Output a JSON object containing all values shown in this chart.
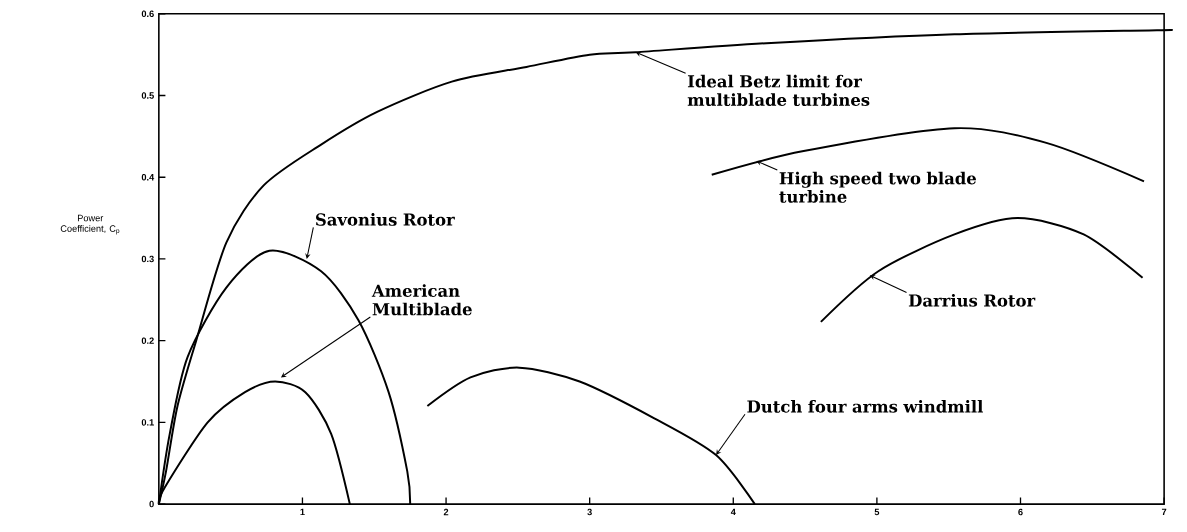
{
  "chart_data": {
    "type": "line",
    "ylabel": "Power Coefficient, C$_{p}$",
    "xlim": [
      0,
      7
    ],
    "ylim": [
      0,
      0.6
    ],
    "xticks": [
      1,
      2,
      3,
      4,
      5,
      6,
      7
    ],
    "yticks": [
      0,
      0.1,
      0.2,
      0.3,
      0.4,
      0.5,
      0.6
    ],
    "marker": "none",
    "line_style": "solid",
    "series": [
      {
        "color": "#000000",
        "x": [
          0,
          0.05,
          0.13,
          0.26,
          0.47,
          0.73,
          1.13,
          1.52,
          2.04,
          2.56,
          3.0,
          3.32,
          4.23,
          5.54,
          6.95,
          7.0
        ],
        "values": [
          0,
          0.04,
          0.12,
          0.2,
          0.32,
          0.39,
          0.44,
          0.48,
          0.517,
          0.535,
          0.55,
          0.553,
          0.564,
          0.575,
          0.58,
          0.58
        ]
      },
      {
        "color": "#000000",
        "x": [
          0,
          0.075,
          0.2,
          0.47,
          0.77,
          1.13,
          1.39,
          1.6,
          1.73,
          1.75
        ],
        "values": [
          0,
          0.085,
          0.18,
          0.265,
          0.31,
          0.285,
          0.225,
          0.137,
          0.04,
          0
        ]
      },
      {
        "color": "#000000",
        "x": [
          0,
          0.04,
          0.34,
          0.6,
          0.81,
          1.02,
          1.2,
          1.33
        ],
        "values": [
          0,
          0.02,
          0.1,
          0.137,
          0.15,
          0.137,
          0.086,
          0
        ]
      },
      {
        "color": "#000000",
        "x": [
          1.87,
          2.17,
          2.51,
          2.93,
          3.45,
          3.88,
          4.15
        ],
        "values": [
          0.12,
          0.155,
          0.167,
          0.15,
          0.105,
          0.06,
          0
        ]
      },
      {
        "color": "#000000",
        "x": [
          3.85,
          4.49,
          5.54,
          6.18,
          6.86
        ],
        "values": [
          0.403,
          0.432,
          0.46,
          0.442,
          0.395
        ]
      },
      {
        "color": "#000000",
        "x": [
          4.61,
          5.01,
          5.54,
          5.98,
          6.44,
          6.85
        ],
        "values": [
          0.223,
          0.285,
          0.33,
          0.35,
          0.33,
          0.277
        ]
      }
    ],
    "annotations": [
      {
        "text": "Ideal Betz limit for multiblade turbines",
        "x": 3.32,
        "y": 0.553
      },
      {
        "text": "Savonius Rotor",
        "x": 1.03,
        "y": 0.3
      },
      {
        "text": "American Multiblade",
        "x": 0.85,
        "y": 0.155
      },
      {
        "text": "Dutch four arms windmill",
        "x": 3.88,
        "y": 0.06
      },
      {
        "text": "High speed two blade turbine",
        "x": 4.16,
        "y": 0.42
      },
      {
        "text": "Darrius Rotor",
        "x": 4.95,
        "y": 0.28
      }
    ]
  }
}
